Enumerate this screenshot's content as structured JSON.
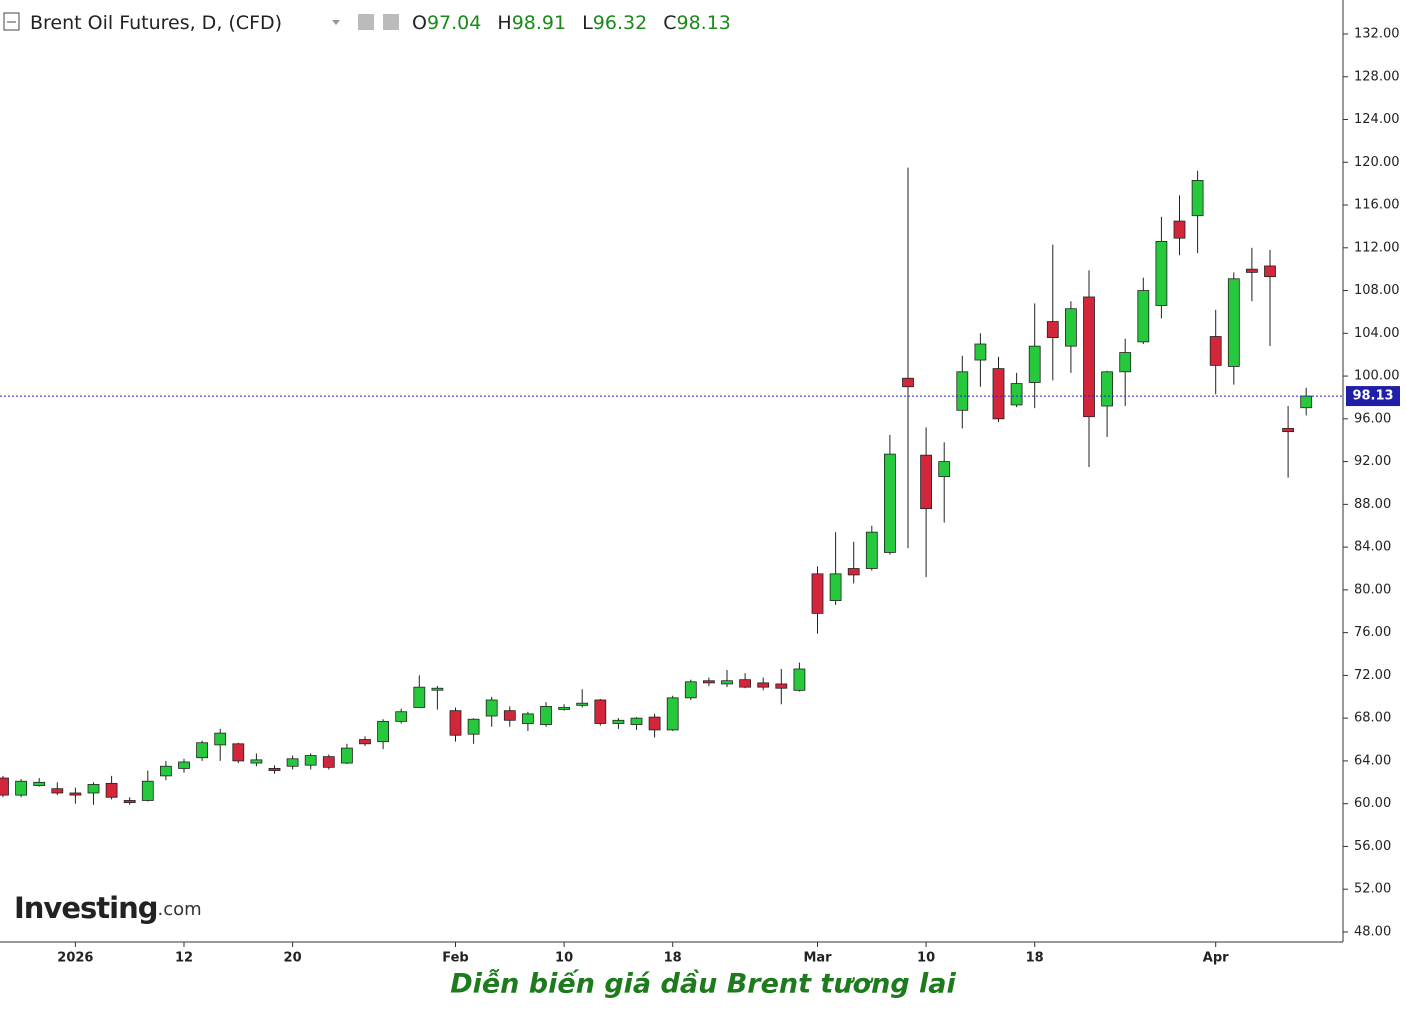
{
  "caption": "Diễn biến giá dầu Brent tương lai",
  "watermark": [
    "Investing",
    ".com"
  ],
  "chart_data": {
    "type": "candlestick",
    "title": "Brent Oil Futures, D, (CFD)",
    "ohlc_labels": [
      "O",
      "H",
      "L",
      "C"
    ],
    "up_color": "#26c93b",
    "down_color": "#d3263a",
    "categories": [
      null,
      null,
      null,
      null,
      "2026",
      null,
      null,
      null,
      null,
      null,
      "12",
      null,
      null,
      null,
      null,
      null,
      "20",
      null,
      null,
      null,
      null,
      null,
      null,
      null,
      null,
      "Feb",
      null,
      null,
      null,
      null,
      null,
      "10",
      null,
      null,
      null,
      null,
      null,
      "18",
      null,
      null,
      null,
      null,
      null,
      null,
      null,
      "Mar",
      null,
      null,
      null,
      null,
      null,
      "10",
      null,
      null,
      null,
      null,
      null,
      "18",
      null,
      null,
      null,
      null,
      null,
      null,
      null,
      null,
      null,
      "Apr",
      null,
      null,
      null,
      null,
      null
    ],
    "open": [
      62.4,
      60.8,
      61.7,
      61.4,
      61.0,
      61.0,
      61.9,
      60.3,
      60.3,
      62.6,
      63.3,
      64.3,
      65.5,
      65.6,
      63.8,
      63.3,
      63.5,
      63.6,
      64.4,
      63.8,
      66.0,
      65.8,
      67.7,
      69.0,
      70.7,
      68.7,
      66.5,
      68.2,
      68.7,
      67.5,
      67.4,
      68.9,
      69.2,
      69.7,
      67.5,
      67.4,
      68.1,
      66.9,
      69.9,
      71.5,
      71.2,
      71.6,
      71.3,
      71.2,
      70.6,
      81.5,
      79.0,
      82.0,
      82.0,
      83.5,
      99.8,
      92.6,
      90.6,
      96.8,
      101.5,
      100.7,
      97.3,
      99.4,
      105.1,
      102.8,
      107.4,
      97.2,
      100.4,
      103.2,
      106.6,
      114.5,
      115.0,
      103.7,
      100.9,
      110.0,
      110.3,
      95.1,
      97.04
    ],
    "high": [
      62.6,
      62.3,
      62.4,
      62.0,
      61.5,
      62.0,
      62.6,
      60.6,
      63.1,
      64.0,
      64.2,
      65.9,
      67.0,
      65.7,
      64.7,
      63.6,
      64.5,
      64.7,
      64.6,
      65.6,
      66.3,
      67.9,
      68.9,
      72.0,
      71.0,
      69.0,
      68.0,
      70.0,
      69.1,
      68.6,
      69.5,
      69.3,
      70.7,
      69.8,
      68.0,
      68.1,
      68.4,
      70.1,
      71.6,
      71.8,
      72.5,
      72.2,
      71.8,
      72.6,
      73.2,
      82.2,
      85.4,
      84.5,
      86.0,
      94.5,
      119.5,
      95.2,
      93.8,
      101.9,
      104.0,
      101.8,
      100.3,
      106.8,
      112.3,
      107.0,
      109.9,
      100.5,
      103.5,
      109.2,
      114.9,
      116.9,
      119.2,
      106.2,
      109.7,
      112.0,
      111.8,
      97.2,
      98.91
    ],
    "low": [
      60.6,
      60.6,
      61.6,
      60.8,
      60.0,
      59.9,
      60.4,
      59.9,
      60.2,
      62.2,
      62.9,
      64.0,
      64.0,
      63.8,
      63.5,
      62.8,
      63.2,
      63.2,
      63.2,
      63.7,
      65.4,
      65.1,
      67.5,
      69.0,
      68.8,
      65.8,
      65.6,
      67.2,
      67.2,
      66.8,
      67.2,
      68.7,
      69.0,
      67.3,
      67.0,
      66.9,
      66.2,
      66.8,
      69.7,
      71.0,
      70.9,
      70.8,
      70.6,
      69.3,
      70.5,
      75.9,
      78.6,
      80.6,
      81.8,
      83.3,
      83.9,
      81.2,
      86.3,
      95.1,
      99.0,
      95.7,
      97.1,
      97.0,
      99.6,
      100.3,
      91.5,
      94.3,
      97.2,
      103.0,
      105.4,
      111.3,
      111.5,
      98.3,
      99.2,
      107.0,
      102.8,
      90.5,
      96.32
    ],
    "close": [
      60.8,
      62.1,
      62.0,
      61.0,
      60.8,
      61.8,
      60.6,
      60.1,
      62.1,
      63.5,
      63.9,
      65.7,
      66.6,
      64.0,
      64.1,
      63.1,
      64.2,
      64.5,
      63.4,
      65.2,
      65.6,
      67.7,
      68.6,
      70.9,
      70.8,
      66.4,
      67.9,
      69.7,
      67.8,
      68.4,
      69.1,
      69.0,
      69.4,
      67.5,
      67.8,
      68.0,
      66.9,
      69.9,
      71.4,
      71.3,
      71.5,
      70.9,
      70.9,
      70.8,
      72.6,
      77.8,
      81.5,
      81.4,
      85.4,
      92.7,
      99.0,
      87.6,
      92.0,
      100.4,
      103.0,
      96.0,
      99.3,
      102.8,
      103.6,
      106.3,
      96.2,
      100.4,
      102.2,
      108.0,
      112.6,
      112.9,
      118.3,
      101.0,
      109.1,
      109.7,
      109.3,
      94.8,
      98.13
    ],
    "ylim": [
      47.06,
      135.18
    ],
    "yticks": [
      {
        "value": 48,
        "label": "48.00"
      },
      {
        "value": 52,
        "label": "52.00"
      },
      {
        "value": 56,
        "label": "56.00"
      },
      {
        "value": 60,
        "label": "60.00"
      },
      {
        "value": 64,
        "label": "64.00"
      },
      {
        "value": 68,
        "label": "68.00"
      },
      {
        "value": 72,
        "label": "72.00"
      },
      {
        "value": 76,
        "label": "76.00"
      },
      {
        "value": 80,
        "label": "80.00"
      },
      {
        "value": 84,
        "label": "84.00"
      },
      {
        "value": 88,
        "label": "88.00"
      },
      {
        "value": 92,
        "label": "92.00"
      },
      {
        "value": 96,
        "label": "96.00"
      },
      {
        "value": 100,
        "label": "100.00"
      },
      {
        "value": 104,
        "label": "104.00"
      },
      {
        "value": 108,
        "label": "108.00"
      },
      {
        "value": 112,
        "label": "112.00"
      },
      {
        "value": 116,
        "label": "116.00"
      },
      {
        "value": 120,
        "label": "120.00"
      },
      {
        "value": 124,
        "label": "124.00"
      },
      {
        "value": 128,
        "label": "128.00"
      },
      {
        "value": 132,
        "label": "132.00"
      }
    ],
    "grid": false
  }
}
